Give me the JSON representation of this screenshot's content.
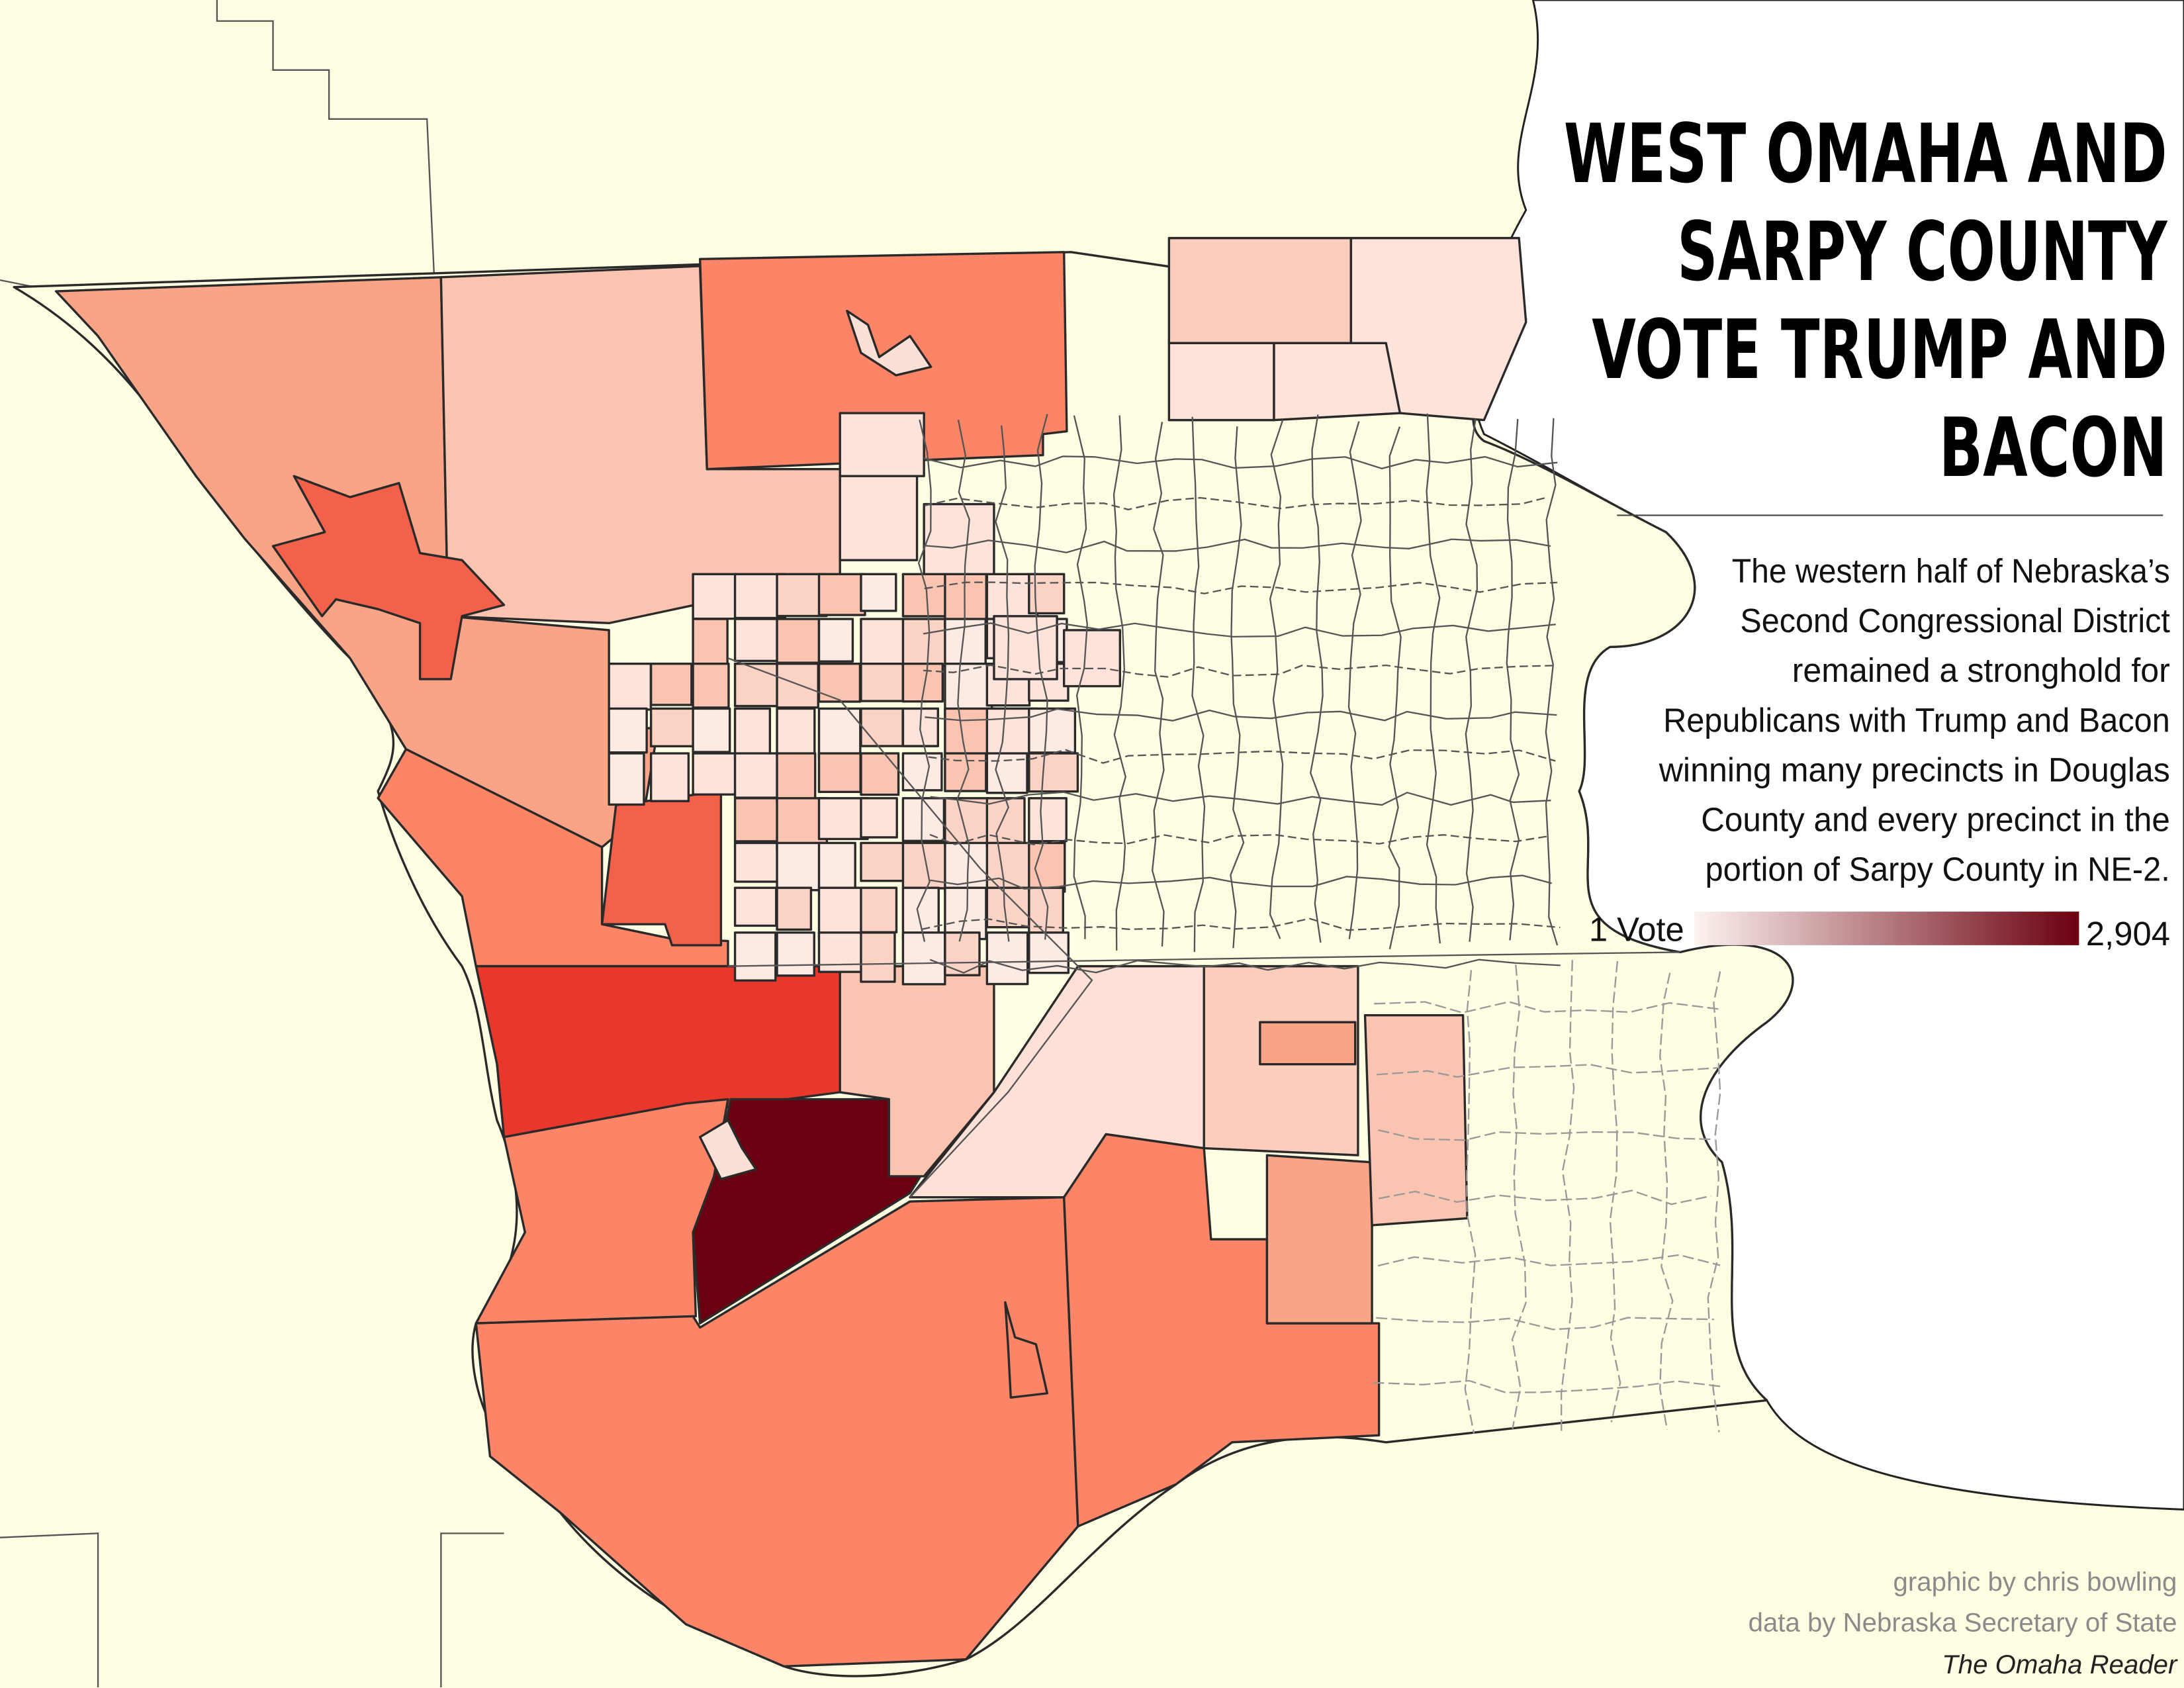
{
  "title_lines": [
    "WEST OMAHA AND",
    "SARPY COUNTY",
    "VOTE TRUMP AND",
    "BACON"
  ],
  "description_lines": [
    "The western half of Nebraska’s",
    "Second Congressional District",
    "remained a stronghold for",
    "Republicans with Trump and Bacon",
    "winning many precincts in Douglas",
    "County and every precinct in the",
    "portion of Sarpy County in NE-2."
  ],
  "legend": {
    "min_label": "1 Vote",
    "max_label": "2,904",
    "colors": [
      "#fdf3ef",
      "#6b0010"
    ]
  },
  "credits": {
    "graphic": "graphic by chris bowling",
    "data": "data by Nebraska  Secretary of State",
    "publication": "The Omaha Reader"
  }
}
